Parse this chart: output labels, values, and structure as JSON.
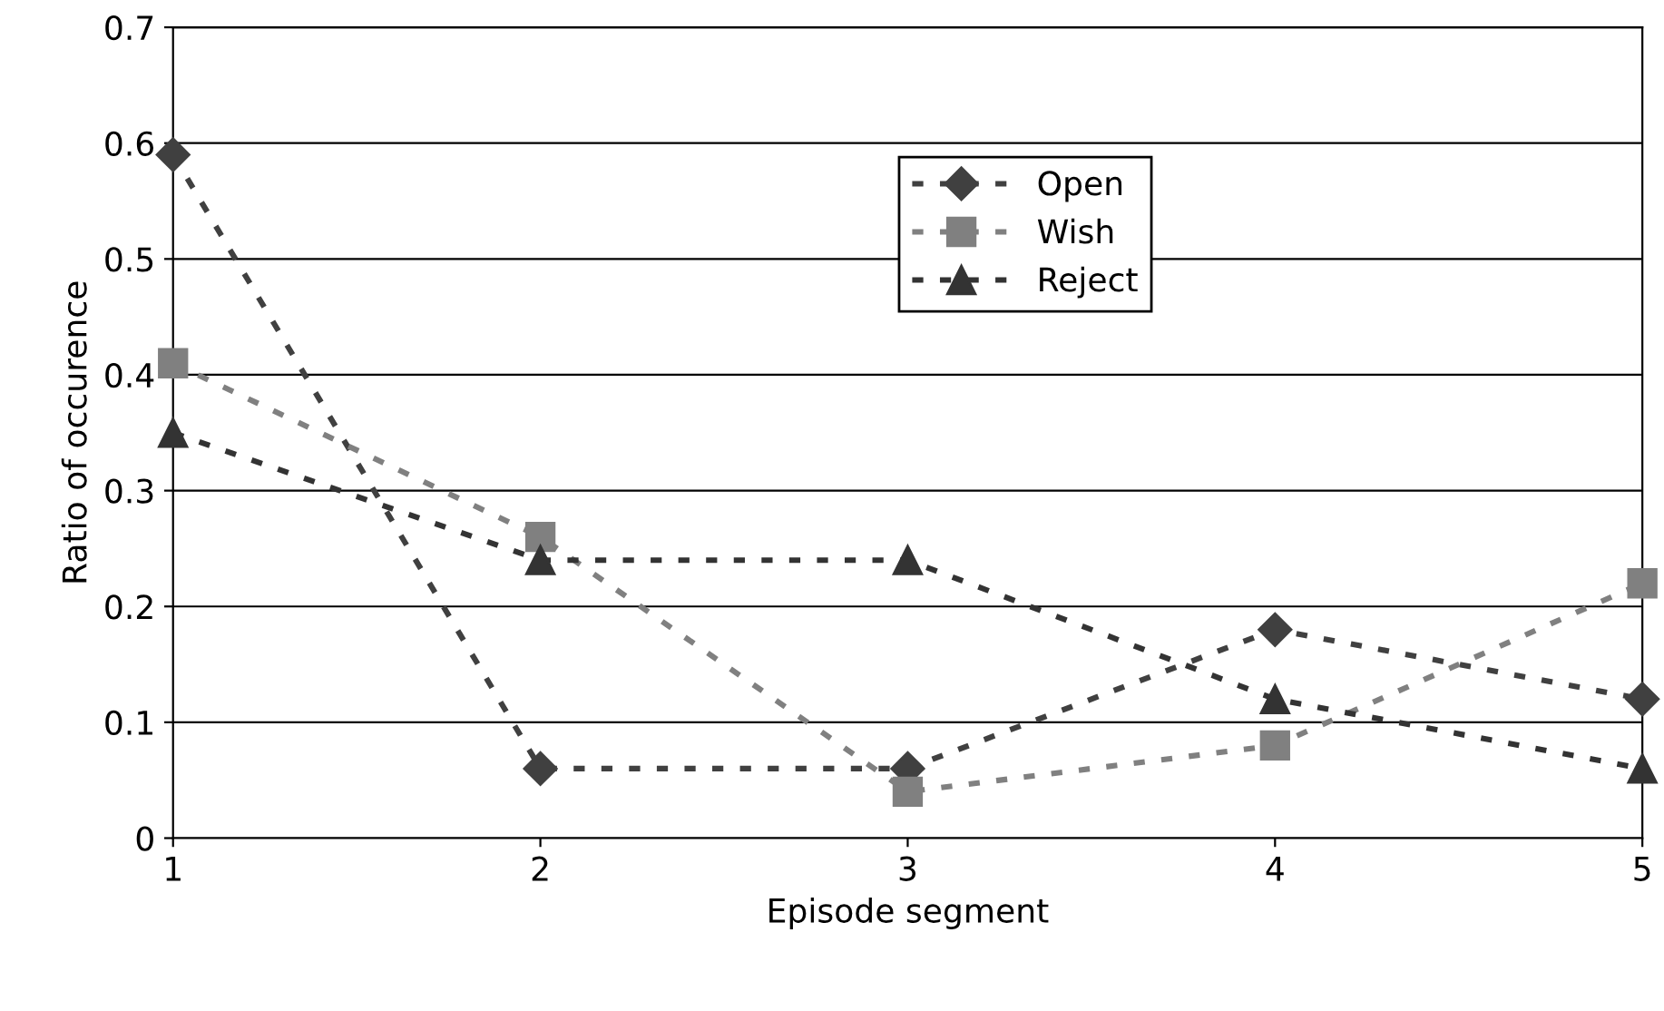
{
  "chart_data": {
    "type": "line",
    "xlabel": "Episode segment",
    "ylabel": "Ratio of occurence",
    "x": [
      1,
      2,
      3,
      4,
      5
    ],
    "xlim": [
      1,
      5
    ],
    "xticks": [
      1,
      2,
      3,
      4,
      5
    ],
    "ylim": [
      0,
      0.7
    ],
    "yticks": [
      0,
      0.1,
      0.2,
      0.3,
      0.4,
      0.5,
      0.6,
      0.7
    ],
    "grid": "y",
    "legend": "top",
    "line_style": "dotted",
    "series": [
      {
        "name": "Open",
        "color": "#404040",
        "marker": "diamond",
        "values": [
          0.59,
          0.06,
          0.06,
          0.18,
          0.12
        ]
      },
      {
        "name": "Wish",
        "color": "#808080",
        "marker": "square",
        "values": [
          0.41,
          0.26,
          0.04,
          0.08,
          0.22
        ]
      },
      {
        "name": "Reject",
        "color": "#333333",
        "marker": "triangle",
        "values": [
          0.35,
          0.24,
          0.24,
          0.12,
          0.06
        ]
      }
    ]
  }
}
